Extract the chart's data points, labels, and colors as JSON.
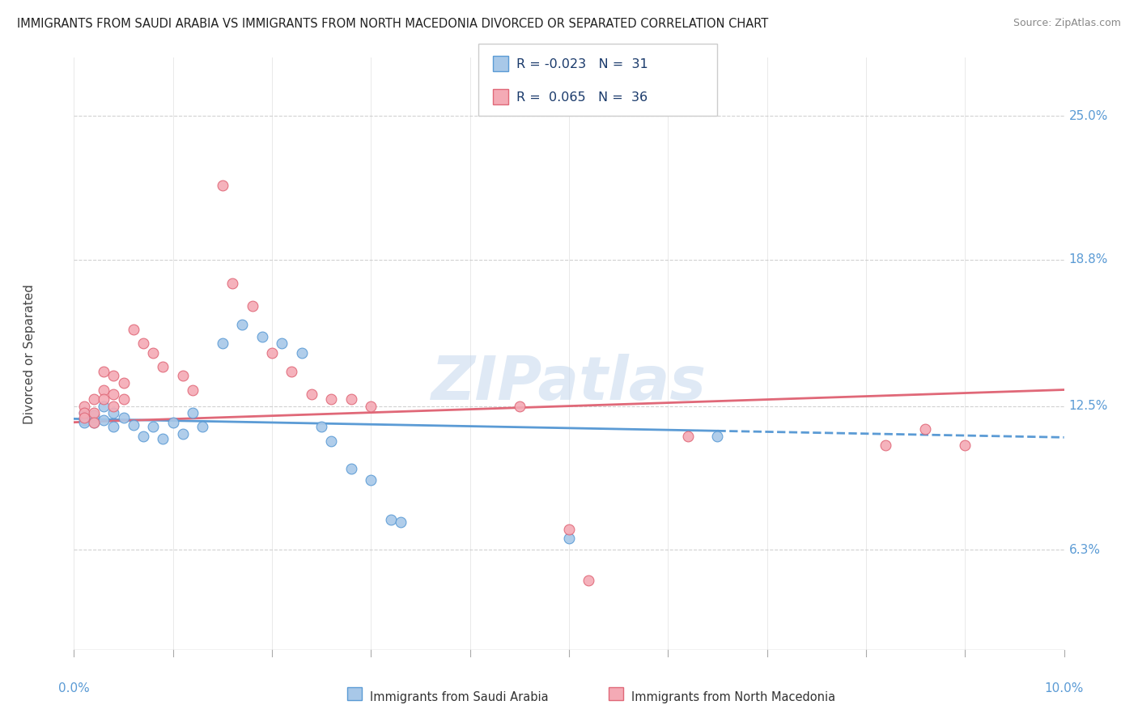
{
  "title": "IMMIGRANTS FROM SAUDI ARABIA VS IMMIGRANTS FROM NORTH MACEDONIA DIVORCED OR SEPARATED CORRELATION CHART",
  "source": "Source: ZipAtlas.com",
  "ylabel": "Divorced or Separated",
  "ytick_labels": [
    "6.3%",
    "12.5%",
    "18.8%",
    "25.0%"
  ],
  "ytick_values": [
    0.063,
    0.125,
    0.188,
    0.25
  ],
  "xlim": [
    0.0,
    0.1
  ],
  "ylim": [
    0.02,
    0.275
  ],
  "watermark": "ZIPatlas",
  "color_saudi": "#a8c8e8",
  "color_macedonia": "#f4aab5",
  "line_color_saudi": "#5b9bd5",
  "line_color_macedonia": "#e06878",
  "saudi_points": [
    [
      0.001,
      0.122
    ],
    [
      0.001,
      0.119
    ],
    [
      0.001,
      0.118
    ],
    [
      0.002,
      0.121
    ],
    [
      0.002,
      0.118
    ],
    [
      0.003,
      0.125
    ],
    [
      0.003,
      0.119
    ],
    [
      0.004,
      0.122
    ],
    [
      0.004,
      0.116
    ],
    [
      0.005,
      0.12
    ],
    [
      0.006,
      0.117
    ],
    [
      0.007,
      0.112
    ],
    [
      0.008,
      0.116
    ],
    [
      0.009,
      0.111
    ],
    [
      0.01,
      0.118
    ],
    [
      0.011,
      0.113
    ],
    [
      0.012,
      0.122
    ],
    [
      0.013,
      0.116
    ],
    [
      0.015,
      0.152
    ],
    [
      0.017,
      0.16
    ],
    [
      0.019,
      0.155
    ],
    [
      0.021,
      0.152
    ],
    [
      0.023,
      0.148
    ],
    [
      0.025,
      0.116
    ],
    [
      0.026,
      0.11
    ],
    [
      0.028,
      0.098
    ],
    [
      0.03,
      0.093
    ],
    [
      0.032,
      0.076
    ],
    [
      0.033,
      0.075
    ],
    [
      0.05,
      0.068
    ],
    [
      0.065,
      0.112
    ]
  ],
  "macedonia_points": [
    [
      0.001,
      0.125
    ],
    [
      0.001,
      0.122
    ],
    [
      0.001,
      0.12
    ],
    [
      0.002,
      0.128
    ],
    [
      0.002,
      0.122
    ],
    [
      0.002,
      0.118
    ],
    [
      0.003,
      0.14
    ],
    [
      0.003,
      0.132
    ],
    [
      0.003,
      0.128
    ],
    [
      0.004,
      0.138
    ],
    [
      0.004,
      0.13
    ],
    [
      0.004,
      0.125
    ],
    [
      0.005,
      0.135
    ],
    [
      0.005,
      0.128
    ],
    [
      0.006,
      0.158
    ],
    [
      0.007,
      0.152
    ],
    [
      0.008,
      0.148
    ],
    [
      0.009,
      0.142
    ],
    [
      0.011,
      0.138
    ],
    [
      0.012,
      0.132
    ],
    [
      0.015,
      0.22
    ],
    [
      0.016,
      0.178
    ],
    [
      0.018,
      0.168
    ],
    [
      0.02,
      0.148
    ],
    [
      0.022,
      0.14
    ],
    [
      0.024,
      0.13
    ],
    [
      0.026,
      0.128
    ],
    [
      0.028,
      0.128
    ],
    [
      0.03,
      0.125
    ],
    [
      0.045,
      0.125
    ],
    [
      0.05,
      0.072
    ],
    [
      0.052,
      0.05
    ],
    [
      0.062,
      0.112
    ],
    [
      0.082,
      0.108
    ],
    [
      0.086,
      0.115
    ],
    [
      0.09,
      0.108
    ]
  ],
  "background_color": "#ffffff",
  "grid_color": "#cccccc"
}
